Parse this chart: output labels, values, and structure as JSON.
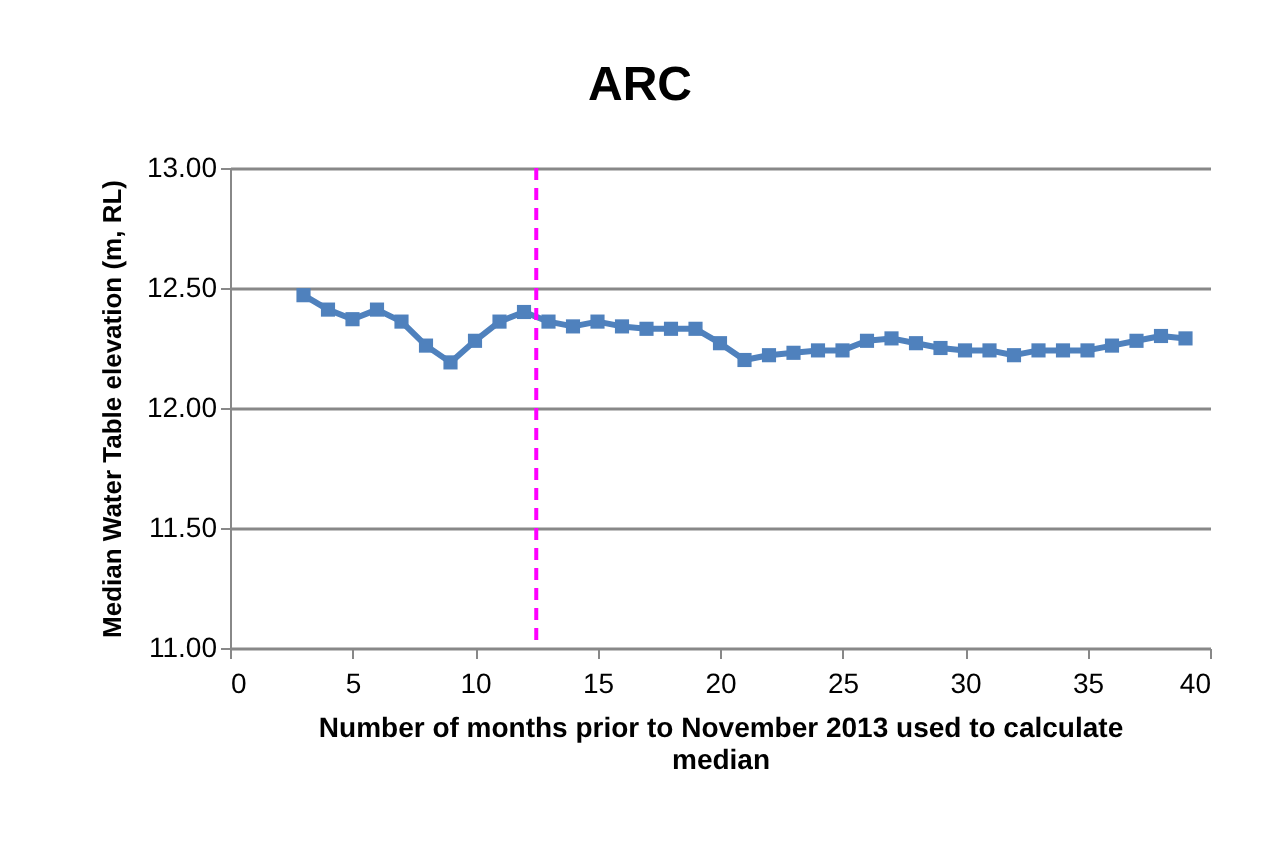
{
  "chart_data": {
    "type": "line",
    "title": "ARC",
    "xlabel": "Number of months prior to November 2013 used to calculate median",
    "ylabel": "Median Water Table elevation (m, RL)",
    "x": [
      3,
      4,
      5,
      6,
      7,
      8,
      9,
      10,
      11,
      12,
      13,
      14,
      15,
      16,
      17,
      18,
      19,
      20,
      21,
      22,
      23,
      24,
      25,
      26,
      27,
      28,
      29,
      30,
      31,
      32,
      33,
      34,
      35,
      36,
      37,
      38,
      39
    ],
    "series": [
      {
        "color": "#4f81bd",
        "values": [
          12.47,
          12.41,
          12.37,
          12.41,
          12.36,
          12.26,
          12.19,
          12.28,
          12.36,
          12.4,
          12.36,
          12.34,
          12.36,
          12.34,
          12.33,
          12.33,
          12.33,
          12.27,
          12.2,
          12.22,
          12.23,
          12.24,
          12.24,
          12.28,
          12.29,
          12.27,
          12.25,
          12.24,
          12.24,
          12.22,
          12.24,
          12.24,
          12.24,
          12.26,
          12.28,
          12.3,
          12.29
        ]
      }
    ],
    "xlim": [
      0,
      40
    ],
    "xticks": [
      0,
      5,
      10,
      15,
      20,
      25,
      30,
      35,
      40
    ],
    "ylim": [
      11,
      13
    ],
    "yticks": [
      {
        "value": 11,
        "label": "11.00"
      },
      {
        "value": 11.5,
        "label": "11.50"
      },
      {
        "value": 12,
        "label": "12.00"
      },
      {
        "value": 12.5,
        "label": "12.50"
      },
      {
        "value": 13,
        "label": "13.00"
      }
    ],
    "ref_lines": [
      {
        "axis": "x",
        "value": 12.5,
        "color": "#ff00ff",
        "line_style": "dashed"
      }
    ],
    "grid": "y",
    "marker": "square",
    "line_style": "solid"
  }
}
